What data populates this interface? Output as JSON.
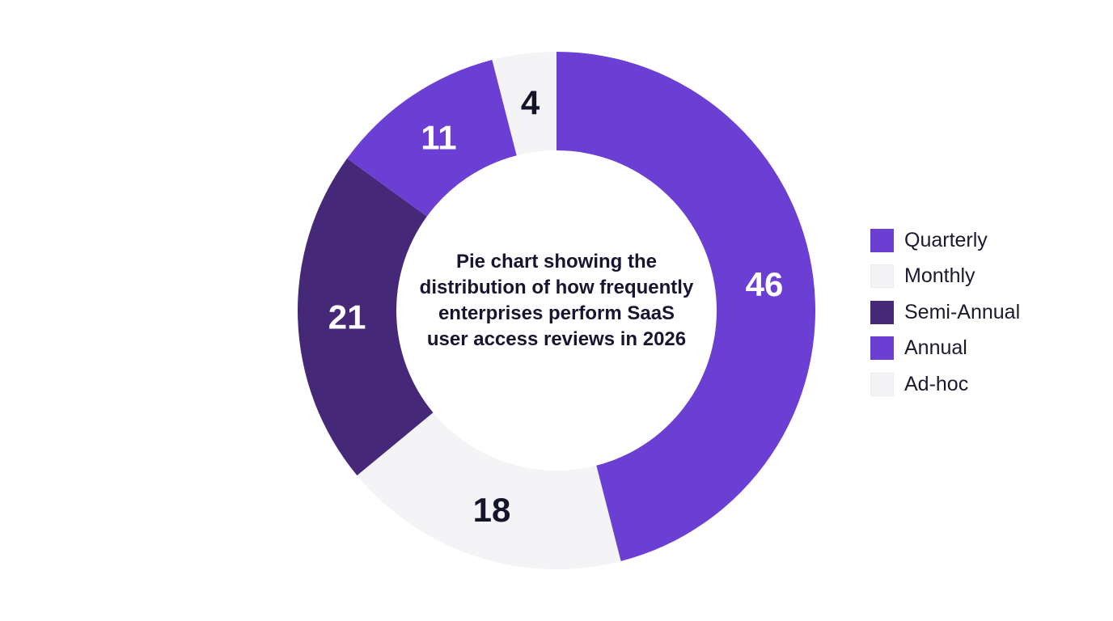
{
  "chart_data": {
    "type": "pie",
    "title": "Pie chart showing the distribution of how frequently enterprises perform SaaS user access reviews in 2026",
    "categories": [
      "Quarterly",
      "Monthly",
      "Semi-Annual",
      "Annual",
      "Ad-hoc"
    ],
    "values": [
      46,
      18,
      21,
      11,
      4
    ],
    "colors": [
      "#6b3fd4",
      "#f4f4f6",
      "#452878",
      "#6b3fd4",
      "#f4f4f6"
    ],
    "label_colors": [
      "#ffffff",
      "#15152a",
      "#ffffff",
      "#ffffff",
      "#15152a"
    ],
    "legend": {
      "position": "right",
      "entries": [
        {
          "label": "Quarterly",
          "color": "#6b3fd4"
        },
        {
          "label": "Monthly",
          "color": "#f4f4f6"
        },
        {
          "label": "Semi-Annual",
          "color": "#452878"
        },
        {
          "label": "Annual",
          "color": "#6b3fd4"
        },
        {
          "label": "Ad-hoc",
          "color": "#f4f4f6"
        }
      ]
    },
    "donut": true,
    "start_angle_deg": 0,
    "direction": "clockwise"
  }
}
